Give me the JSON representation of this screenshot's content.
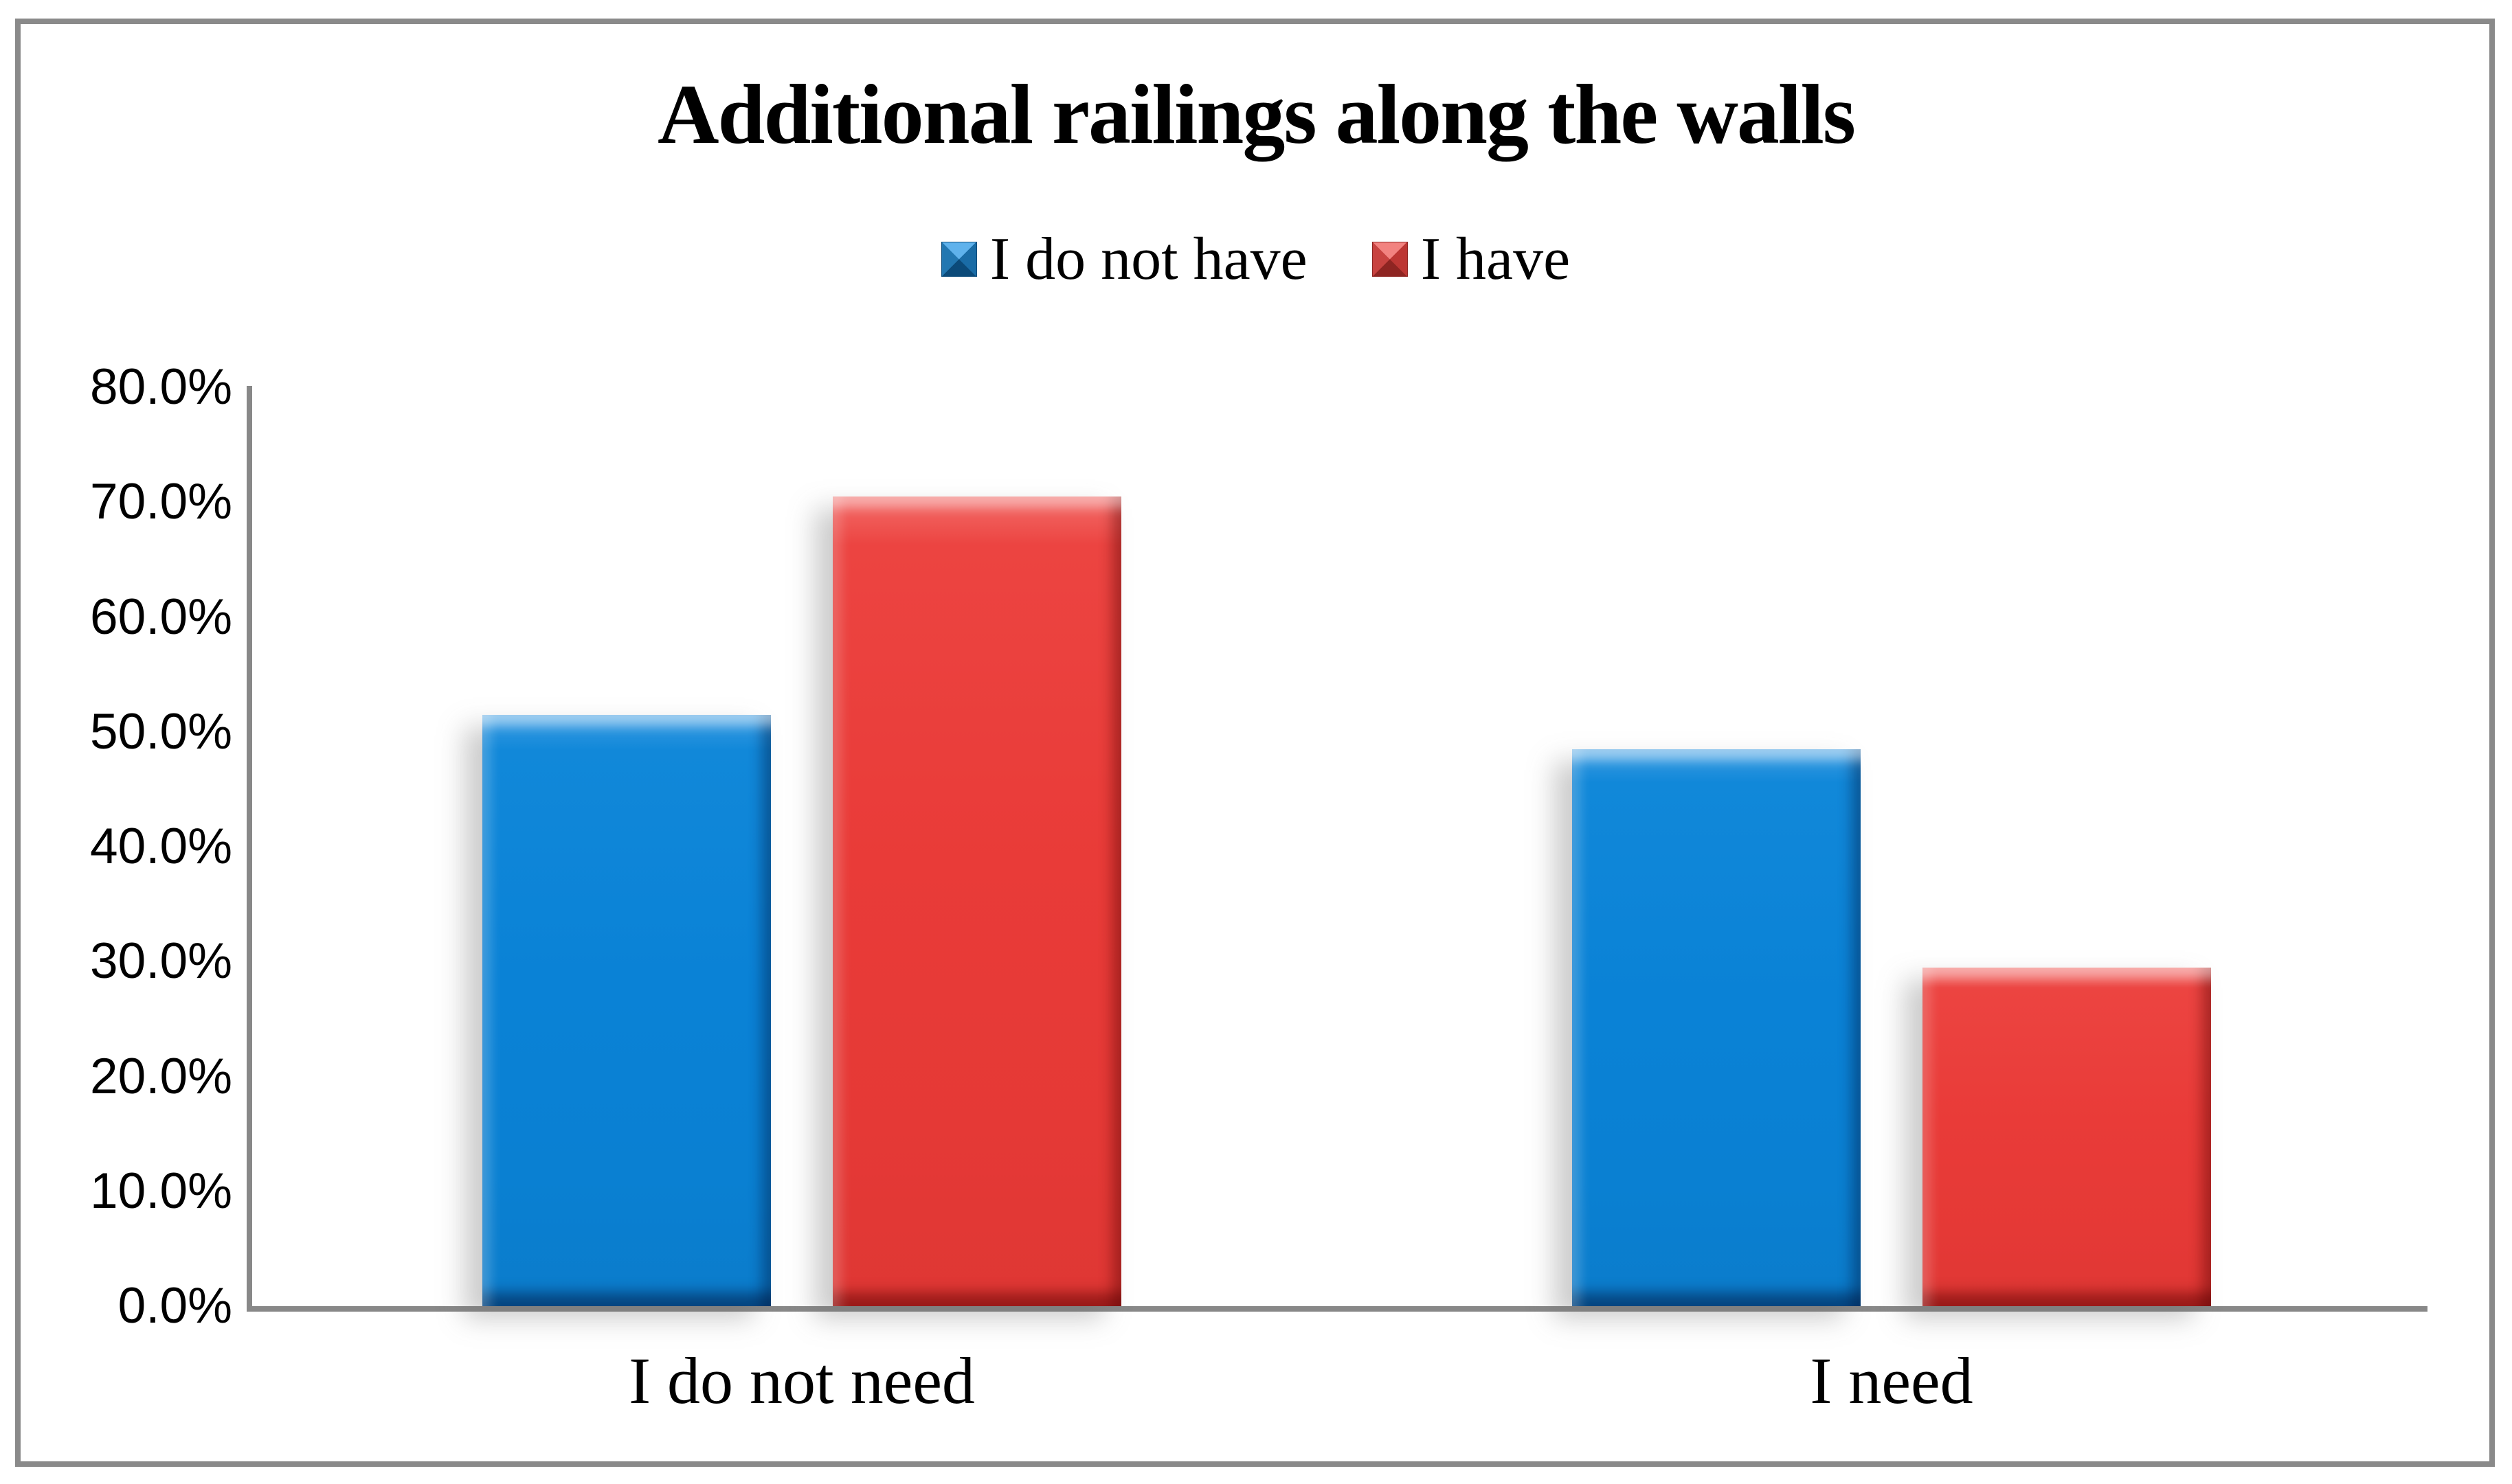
{
  "chart_data": {
    "type": "bar",
    "title": "Additional railings along the walls",
    "categories": [
      "I do not need",
      "I need"
    ],
    "series": [
      {
        "name": "I do not have",
        "color": "#0a82d6",
        "values": [
          51.5,
          48.5
        ]
      },
      {
        "name": "I have",
        "color": "#e93b38",
        "values": [
          70.5,
          29.5
        ]
      }
    ],
    "xlabel": "",
    "ylabel": "",
    "ylim": [
      0,
      80
    ],
    "ytick_step": 10,
    "ytick_labels": [
      "0.0%",
      "10.0%",
      "20.0%",
      "30.0%",
      "40.0%",
      "50.0%",
      "60.0%",
      "70.0%",
      "80.0%"
    ],
    "legend_position": "top-center",
    "grid": "off",
    "value_unit": "percent"
  },
  "colors": {
    "background": "#ffffff",
    "frame_border": "#8a8a8a",
    "axis_line": "#888888",
    "text": "#000000",
    "series_blue": "#0a82d6",
    "series_red": "#e93b38"
  }
}
